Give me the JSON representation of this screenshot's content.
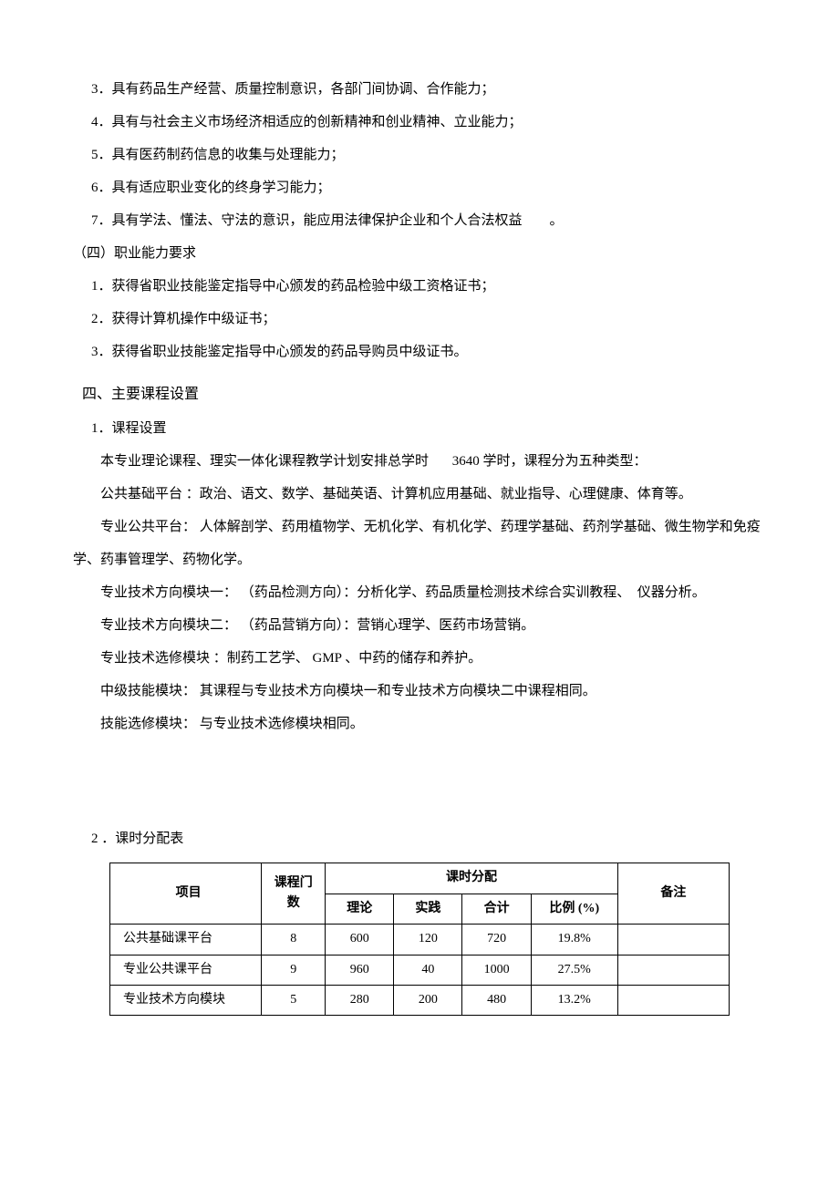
{
  "items": {
    "i3": "3．具有药品生产经营、质量控制意识，各部门间协调、合作能力；",
    "i4": "4．具有与社会主义市场经济相适应的创新精神和创业精神、立业能力；",
    "i5": "5．具有医药制药信息的收集与处理能力；",
    "i6": "6．具有适应职业变化的终身学习能力；",
    "i7": "7．具有学法、懂法、守法的意识，能应用法律保护企业和个人合法权益　　。"
  },
  "section4_title": "（四）职业能力要求",
  "cert": {
    "c1": "1．获得省职业技能鉴定指导中心颁发的药品检验中级工资格证书；",
    "c2": "2．获得计算机操作中级证书；",
    "c3": "3．获得省职业技能鉴定指导中心颁发的药品导购员中级证书。"
  },
  "heading4": "四、主要课程设置",
  "sub1": "1．课程设置",
  "para1a": "本专业理论课程、理实一体化课程教学计划安排总学时",
  "para1b": "3640 学时，课程分为五种类型：",
  "para2": "公共基础平台 ：政治、语文、数学、基础英语、计算机应用基础、就业指导、心理健康、体育等。",
  "para3": "专业公共平台： 人体解剖学、药用植物学、无机化学、有机化学、药理学基础、药剂学基础、微生物学和免疫学、药事管理学、药物化学。",
  "para4": "专业技术方向模块一： （药品检测方向）：分析化学、药品质量检测技术综合实训教程、　仪器分析。",
  "para5": "专业技术方向模块二： （药品营销方向）：营销心理学、医药市场营销。",
  "para6": "专业技术选修模块 ：制药工艺学、 GMP 、中药的储存和养护。",
  "para7": "中级技能模块： 其课程与专业技术方向模块一和专业技术方向模块二中课程相同。",
  "para8": "技能选修模块： 与专业技术选修模块相同。",
  "sub2": "2 ．课时分配表",
  "table": {
    "headers": {
      "project": "项目",
      "courses": "课程门数",
      "alloc": "课时分配",
      "theory": "理论",
      "practice": "实践",
      "total": "合计",
      "ratio": "比例 (%)",
      "remark": "备注"
    },
    "rows": [
      {
        "project": "公共基础课平台",
        "courses": "8",
        "theory": "600",
        "practice": "120",
        "total": "720",
        "ratio": "19.8%",
        "remark": ""
      },
      {
        "project": "专业公共课平台",
        "courses": "9",
        "theory": "960",
        "practice": "40",
        "total": "1000",
        "ratio": "27.5%",
        "remark": ""
      },
      {
        "project": "专业技术方向模块",
        "courses": "5",
        "theory": "280",
        "practice": "200",
        "total": "480",
        "ratio": "13.2%",
        "remark": ""
      }
    ]
  }
}
